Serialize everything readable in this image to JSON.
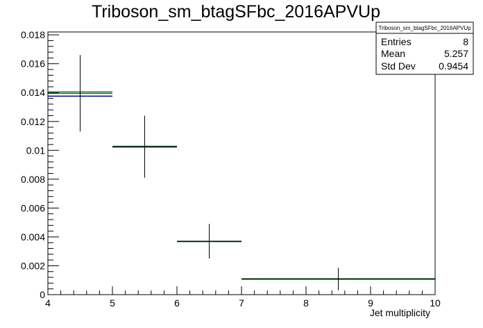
{
  "chart_data": {
    "type": "histogram",
    "title": "Triboson_sm_btagSFbc_2016APVUp",
    "xlabel": "Jet multiplicity",
    "ylabel": "",
    "xlim": [
      4,
      10
    ],
    "ylim": [
      0,
      0.0182
    ],
    "x_ticks": [
      "4",
      "5",
      "6",
      "7",
      "8",
      "9",
      "10"
    ],
    "y_ticks": [
      "0",
      "0.002",
      "0.004",
      "0.006",
      "0.008",
      "0.01",
      "0.012",
      "0.014",
      "0.016",
      "0.018"
    ],
    "x_tick_values": [
      4,
      5,
      6,
      7,
      8,
      9,
      10
    ],
    "y_tick_values": [
      0,
      0.002,
      0.004,
      0.006,
      0.008,
      0.01,
      0.012,
      0.014,
      0.016,
      0.018
    ],
    "bins": [
      {
        "x_low": 4,
        "x_high": 5,
        "x_center": 4.5,
        "value": 0.01395,
        "error": 0.00265
      },
      {
        "x_low": 5,
        "x_high": 6,
        "x_center": 5.5,
        "value": 0.01025,
        "error": 0.00215
      },
      {
        "x_low": 6,
        "x_high": 7,
        "x_center": 6.5,
        "value": 0.0037,
        "error": 0.0012
      },
      {
        "x_low": 7,
        "x_high": 10,
        "x_center": 8.5,
        "value": 0.00108,
        "error": 0.00078
      }
    ],
    "series": [
      {
        "color": "#009900",
        "values": [
          0.01405,
          0.01028,
          0.00368,
          0.0011
        ]
      },
      {
        "color": "#000099",
        "values": [
          0.01375,
          0.01023,
          0.00369,
          0.00108
        ]
      }
    ],
    "stats_box": {
      "name": "Triboson_sm_btagSFbc_2016APVUp",
      "rows": [
        {
          "label": "Entries",
          "value": "8"
        },
        {
          "label": "Mean",
          "value": "5.257"
        },
        {
          "label": "Std Dev",
          "value": "0.9454"
        }
      ]
    }
  }
}
